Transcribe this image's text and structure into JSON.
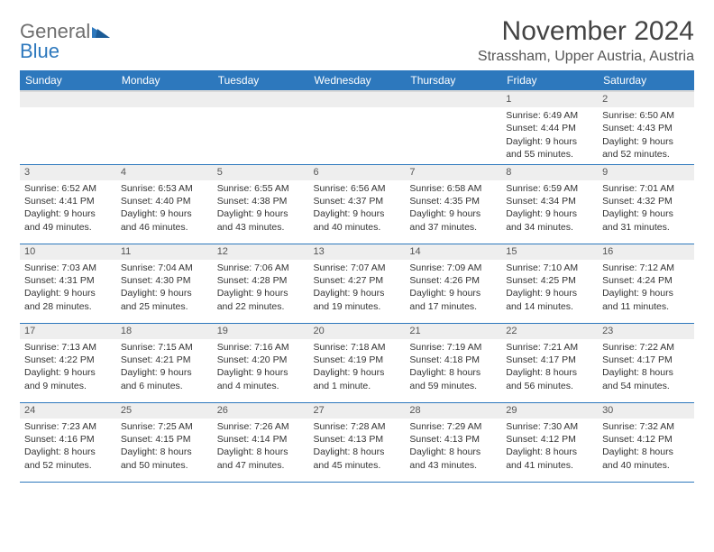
{
  "logo": {
    "general": "General",
    "blue": "Blue"
  },
  "title": "November 2024",
  "location": "Strassham, Upper Austria, Austria",
  "colors": {
    "header_bg": "#2d78bd",
    "header_text": "#ffffff",
    "daynum_bg": "#eeeeee",
    "border": "#2d78bd",
    "text": "#333333"
  },
  "days": [
    "Sunday",
    "Monday",
    "Tuesday",
    "Wednesday",
    "Thursday",
    "Friday",
    "Saturday"
  ],
  "weeks": [
    [
      {
        "n": "",
        "sr": "",
        "ss": "",
        "dl": ""
      },
      {
        "n": "",
        "sr": "",
        "ss": "",
        "dl": ""
      },
      {
        "n": "",
        "sr": "",
        "ss": "",
        "dl": ""
      },
      {
        "n": "",
        "sr": "",
        "ss": "",
        "dl": ""
      },
      {
        "n": "",
        "sr": "",
        "ss": "",
        "dl": ""
      },
      {
        "n": "1",
        "sr": "Sunrise: 6:49 AM",
        "ss": "Sunset: 4:44 PM",
        "dl": "Daylight: 9 hours and 55 minutes."
      },
      {
        "n": "2",
        "sr": "Sunrise: 6:50 AM",
        "ss": "Sunset: 4:43 PM",
        "dl": "Daylight: 9 hours and 52 minutes."
      }
    ],
    [
      {
        "n": "3",
        "sr": "Sunrise: 6:52 AM",
        "ss": "Sunset: 4:41 PM",
        "dl": "Daylight: 9 hours and 49 minutes."
      },
      {
        "n": "4",
        "sr": "Sunrise: 6:53 AM",
        "ss": "Sunset: 4:40 PM",
        "dl": "Daylight: 9 hours and 46 minutes."
      },
      {
        "n": "5",
        "sr": "Sunrise: 6:55 AM",
        "ss": "Sunset: 4:38 PM",
        "dl": "Daylight: 9 hours and 43 minutes."
      },
      {
        "n": "6",
        "sr": "Sunrise: 6:56 AM",
        "ss": "Sunset: 4:37 PM",
        "dl": "Daylight: 9 hours and 40 minutes."
      },
      {
        "n": "7",
        "sr": "Sunrise: 6:58 AM",
        "ss": "Sunset: 4:35 PM",
        "dl": "Daylight: 9 hours and 37 minutes."
      },
      {
        "n": "8",
        "sr": "Sunrise: 6:59 AM",
        "ss": "Sunset: 4:34 PM",
        "dl": "Daylight: 9 hours and 34 minutes."
      },
      {
        "n": "9",
        "sr": "Sunrise: 7:01 AM",
        "ss": "Sunset: 4:32 PM",
        "dl": "Daylight: 9 hours and 31 minutes."
      }
    ],
    [
      {
        "n": "10",
        "sr": "Sunrise: 7:03 AM",
        "ss": "Sunset: 4:31 PM",
        "dl": "Daylight: 9 hours and 28 minutes."
      },
      {
        "n": "11",
        "sr": "Sunrise: 7:04 AM",
        "ss": "Sunset: 4:30 PM",
        "dl": "Daylight: 9 hours and 25 minutes."
      },
      {
        "n": "12",
        "sr": "Sunrise: 7:06 AM",
        "ss": "Sunset: 4:28 PM",
        "dl": "Daylight: 9 hours and 22 minutes."
      },
      {
        "n": "13",
        "sr": "Sunrise: 7:07 AM",
        "ss": "Sunset: 4:27 PM",
        "dl": "Daylight: 9 hours and 19 minutes."
      },
      {
        "n": "14",
        "sr": "Sunrise: 7:09 AM",
        "ss": "Sunset: 4:26 PM",
        "dl": "Daylight: 9 hours and 17 minutes."
      },
      {
        "n": "15",
        "sr": "Sunrise: 7:10 AM",
        "ss": "Sunset: 4:25 PM",
        "dl": "Daylight: 9 hours and 14 minutes."
      },
      {
        "n": "16",
        "sr": "Sunrise: 7:12 AM",
        "ss": "Sunset: 4:24 PM",
        "dl": "Daylight: 9 hours and 11 minutes."
      }
    ],
    [
      {
        "n": "17",
        "sr": "Sunrise: 7:13 AM",
        "ss": "Sunset: 4:22 PM",
        "dl": "Daylight: 9 hours and 9 minutes."
      },
      {
        "n": "18",
        "sr": "Sunrise: 7:15 AM",
        "ss": "Sunset: 4:21 PM",
        "dl": "Daylight: 9 hours and 6 minutes."
      },
      {
        "n": "19",
        "sr": "Sunrise: 7:16 AM",
        "ss": "Sunset: 4:20 PM",
        "dl": "Daylight: 9 hours and 4 minutes."
      },
      {
        "n": "20",
        "sr": "Sunrise: 7:18 AM",
        "ss": "Sunset: 4:19 PM",
        "dl": "Daylight: 9 hours and 1 minute."
      },
      {
        "n": "21",
        "sr": "Sunrise: 7:19 AM",
        "ss": "Sunset: 4:18 PM",
        "dl": "Daylight: 8 hours and 59 minutes."
      },
      {
        "n": "22",
        "sr": "Sunrise: 7:21 AM",
        "ss": "Sunset: 4:17 PM",
        "dl": "Daylight: 8 hours and 56 minutes."
      },
      {
        "n": "23",
        "sr": "Sunrise: 7:22 AM",
        "ss": "Sunset: 4:17 PM",
        "dl": "Daylight: 8 hours and 54 minutes."
      }
    ],
    [
      {
        "n": "24",
        "sr": "Sunrise: 7:23 AM",
        "ss": "Sunset: 4:16 PM",
        "dl": "Daylight: 8 hours and 52 minutes."
      },
      {
        "n": "25",
        "sr": "Sunrise: 7:25 AM",
        "ss": "Sunset: 4:15 PM",
        "dl": "Daylight: 8 hours and 50 minutes."
      },
      {
        "n": "26",
        "sr": "Sunrise: 7:26 AM",
        "ss": "Sunset: 4:14 PM",
        "dl": "Daylight: 8 hours and 47 minutes."
      },
      {
        "n": "27",
        "sr": "Sunrise: 7:28 AM",
        "ss": "Sunset: 4:13 PM",
        "dl": "Daylight: 8 hours and 45 minutes."
      },
      {
        "n": "28",
        "sr": "Sunrise: 7:29 AM",
        "ss": "Sunset: 4:13 PM",
        "dl": "Daylight: 8 hours and 43 minutes."
      },
      {
        "n": "29",
        "sr": "Sunrise: 7:30 AM",
        "ss": "Sunset: 4:12 PM",
        "dl": "Daylight: 8 hours and 41 minutes."
      },
      {
        "n": "30",
        "sr": "Sunrise: 7:32 AM",
        "ss": "Sunset: 4:12 PM",
        "dl": "Daylight: 8 hours and 40 minutes."
      }
    ]
  ]
}
